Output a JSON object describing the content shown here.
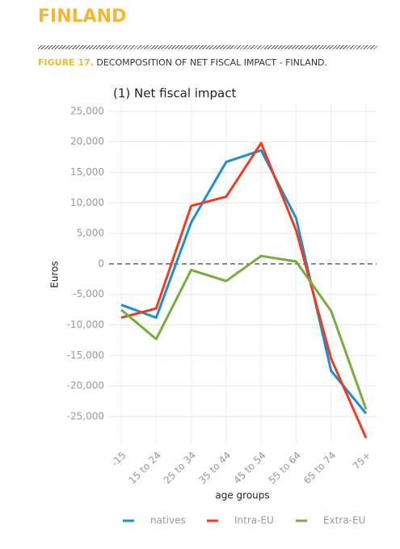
{
  "header": {
    "title": "FINLAND",
    "figure_label": "FIGURE 17.",
    "figure_title": "DECOMPOSITION OF NET FISCAL IMPACT - FINLAND."
  },
  "chart_data": {
    "type": "line",
    "title": "(1) Net fiscal impact",
    "x_label": "age groups",
    "y_label": "Euros",
    "categories": [
      "-15",
      "15 to 24",
      "25 to 34",
      "35 to 44",
      "45 to 54",
      "55 to 64",
      "65 to 74",
      "75+"
    ],
    "series": [
      {
        "name": "natives",
        "color": "#1a8fd8",
        "values": [
          -6700,
          -8800,
          6800,
          16700,
          18600,
          7500,
          -17500,
          -24500
        ]
      },
      {
        "name": "Intra-EU",
        "color": "#f03c1e",
        "values": [
          -8800,
          -7300,
          9500,
          11000,
          19800,
          5500,
          -15500,
          -28500
        ]
      },
      {
        "name": "Extra-EU",
        "color": "#7aab3e",
        "values": [
          -7500,
          -12300,
          -1000,
          -2800,
          1300,
          400,
          -7700,
          -23800
        ]
      }
    ],
    "ylim": [
      -29500,
      26300
    ],
    "yticks": [
      {
        "value": 25000,
        "label": "25,000"
      },
      {
        "value": 20000,
        "label": "20,000"
      },
      {
        "value": 15000,
        "label": "15,000"
      },
      {
        "value": 10000,
        "label": "10,000"
      },
      {
        "value": 5000,
        "label": "5,000"
      },
      0,
      {
        "value": -5000,
        "label": "-5,000"
      },
      {
        "value": -10000,
        "label": "-10,000"
      },
      {
        "value": -15000,
        "label": "-15,000"
      },
      {
        "value": -20000,
        "label": "-20,000"
      },
      {
        "value": -25000,
        "label": "-25,000"
      }
    ],
    "grid": true,
    "legend": "bottom"
  }
}
